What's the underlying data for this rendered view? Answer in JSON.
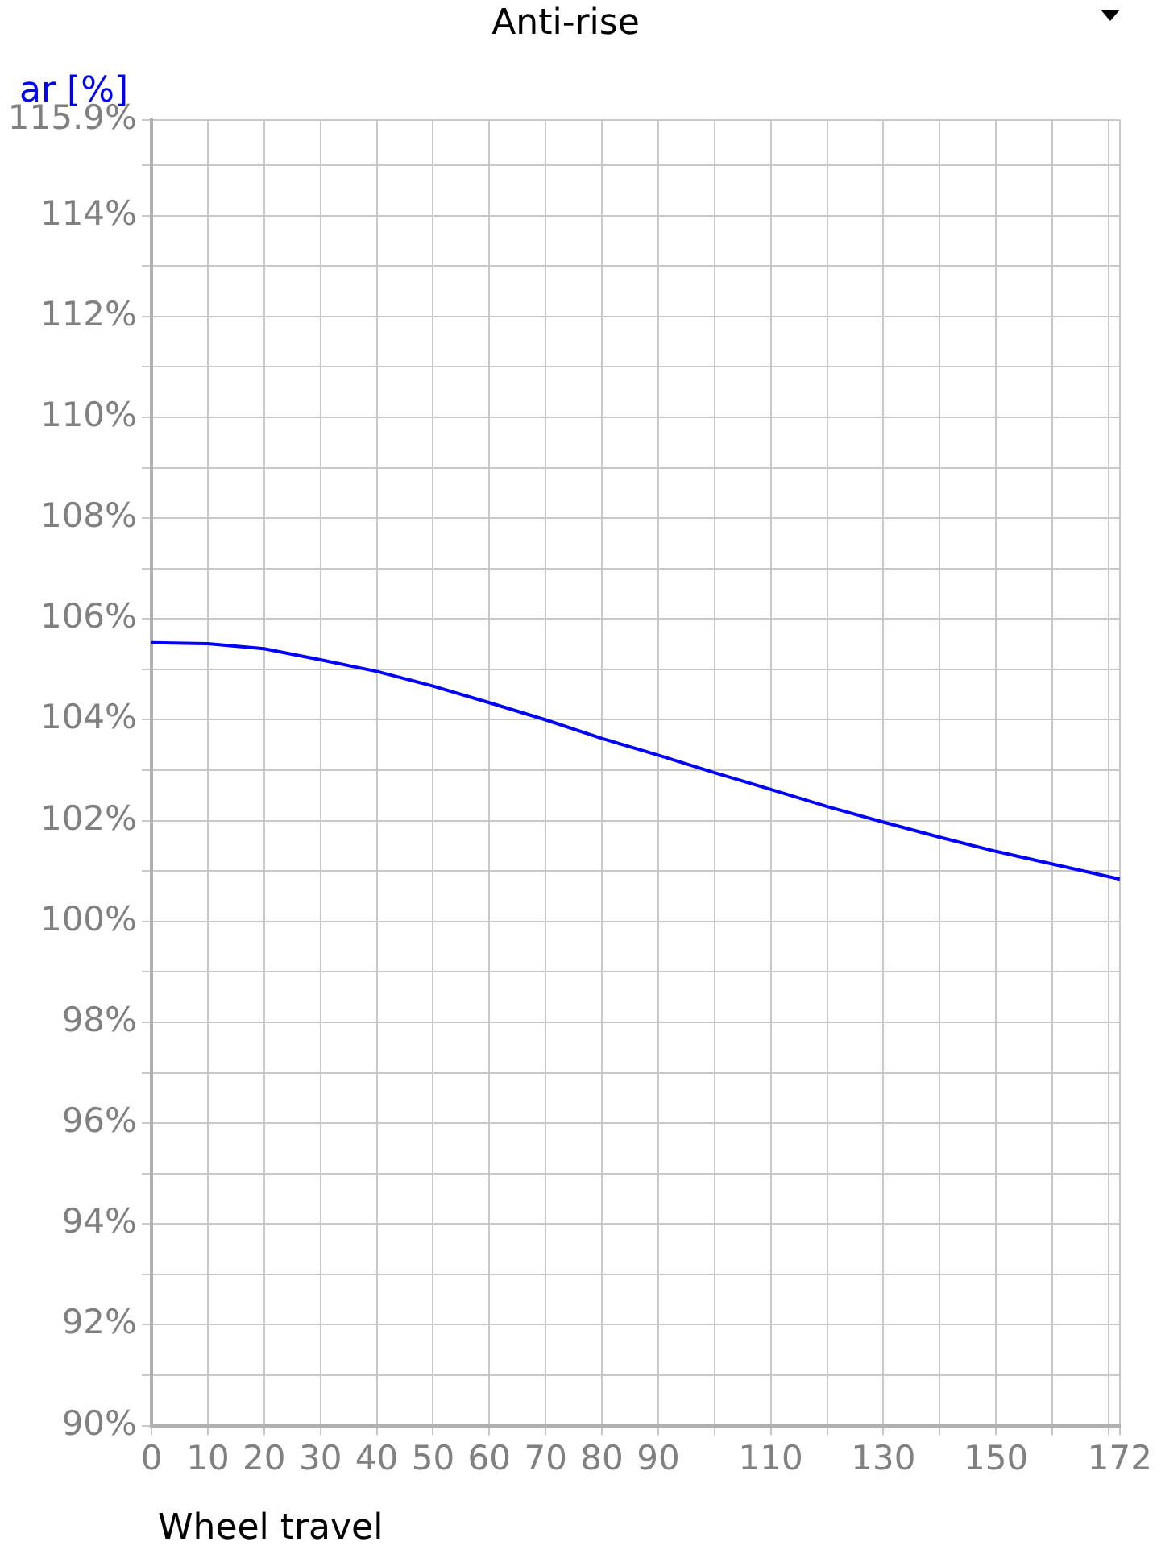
{
  "chart_data": {
    "type": "line",
    "title": "Anti-rise",
    "xlabel": "Wheel travel",
    "ylabel": "ar [%]",
    "x": [
      0,
      10,
      20,
      30,
      40,
      50,
      60,
      70,
      80,
      90,
      100,
      110,
      120,
      130,
      140,
      150,
      160,
      172
    ],
    "series": [
      {
        "color": "#0000ff",
        "values": [
          105.53,
          105.51,
          105.41,
          105.19,
          104.96,
          104.67,
          104.34,
          104.0,
          103.63,
          103.3,
          102.95,
          102.62,
          102.28,
          101.97,
          101.67,
          101.39,
          101.14,
          100.84
        ]
      }
    ],
    "xlim": [
      0,
      172
    ],
    "xticks": [
      0,
      10,
      20,
      30,
      40,
      50,
      60,
      70,
      80,
      90,
      {
        "value": 100,
        "label": null
      },
      110,
      {
        "value": 120,
        "label": null
      },
      130,
      {
        "value": 140,
        "label": null
      },
      150,
      {
        "value": 160,
        "label": null
      },
      {
        "value": 170,
        "label": null
      },
      172
    ],
    "ylim": [
      90,
      115.9
    ],
    "yticks": [
      {
        "value": 90,
        "label": "90%"
      },
      {
        "value": 91,
        "label": null
      },
      {
        "value": 92,
        "label": "92%"
      },
      {
        "value": 93,
        "label": null
      },
      {
        "value": 94,
        "label": "94%"
      },
      {
        "value": 95,
        "label": null
      },
      {
        "value": 96,
        "label": "96%"
      },
      {
        "value": 97,
        "label": null
      },
      {
        "value": 98,
        "label": "98%"
      },
      {
        "value": 99,
        "label": null
      },
      {
        "value": 100,
        "label": "100%"
      },
      {
        "value": 101,
        "label": null
      },
      {
        "value": 102,
        "label": "102%"
      },
      {
        "value": 103,
        "label": null
      },
      {
        "value": 104,
        "label": "104%"
      },
      {
        "value": 105,
        "label": null
      },
      {
        "value": 106,
        "label": "106%"
      },
      {
        "value": 107,
        "label": null
      },
      {
        "value": 108,
        "label": "108%"
      },
      {
        "value": 109,
        "label": null
      },
      {
        "value": 110,
        "label": "110%"
      },
      {
        "value": 111,
        "label": null
      },
      {
        "value": 112,
        "label": "112%"
      },
      {
        "value": 113,
        "label": null
      },
      {
        "value": 114,
        "label": "114%"
      },
      {
        "value": 115,
        "label": null
      },
      {
        "value": 115.9,
        "label": "115.9%"
      }
    ],
    "grid": true,
    "legend": false,
    "marker": "none",
    "line_style": "solid"
  }
}
